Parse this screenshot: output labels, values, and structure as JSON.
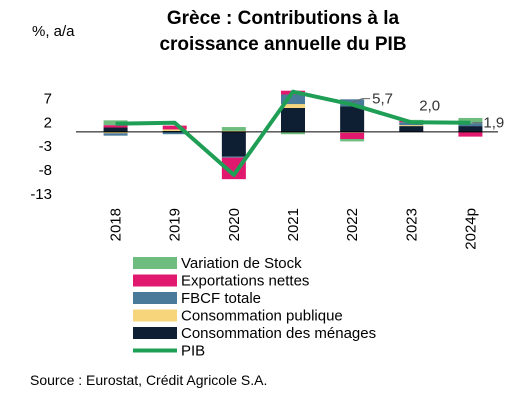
{
  "chart_data": {
    "type": "bar",
    "title_lines": [
      "Grèce : Contributions à la",
      "croissance annuelle du PIB"
    ],
    "unit_label": "%, a/a",
    "categories": [
      "2018",
      "2019",
      "2020",
      "2021",
      "2022",
      "2023",
      "2024p"
    ],
    "ylim": [
      -13,
      10
    ],
    "yticks": [
      "7",
      "2",
      "-3",
      "-8",
      "-13"
    ],
    "ytick_values": [
      7,
      2,
      -3,
      -8,
      -13
    ],
    "stacked": true,
    "grid": false,
    "series": [
      {
        "name": "Consommation des ménages",
        "kind": "bar",
        "color": "#0f1f33",
        "values": [
          0.9,
          0.2,
          -5.2,
          5.0,
          5.3,
          1.2,
          1.2
        ]
      },
      {
        "name": "Consommation publique",
        "kind": "bar",
        "color": "#f7d57a",
        "values": [
          -0.3,
          0.3,
          0.2,
          0.8,
          -0.2,
          0.2,
          0.0
        ]
      },
      {
        "name": "FBCF totale",
        "kind": "bar",
        "color": "#4a7a9a",
        "values": [
          -0.5,
          -0.5,
          -0.2,
          2.0,
          1.5,
          0.6,
          0.6
        ]
      },
      {
        "name": "Exportations nettes",
        "kind": "bar",
        "color": "#e0196e",
        "values": [
          0.5,
          0.8,
          -4.5,
          0.8,
          -1.3,
          0.3,
          -1.0
        ]
      },
      {
        "name": "Variation de Stock",
        "kind": "bar",
        "color": "#6fbd7e",
        "values": [
          1.0,
          0.0,
          0.8,
          -0.5,
          -0.5,
          0.2,
          1.1
        ]
      },
      {
        "name": "PIB",
        "kind": "line",
        "color": "#1f9e56",
        "values": [
          1.7,
          1.9,
          -9.0,
          8.4,
          5.7,
          2.0,
          1.9
        ]
      }
    ],
    "data_labels": [
      {
        "category": "2022",
        "text": "5,7"
      },
      {
        "category": "2023",
        "text": "2,0"
      },
      {
        "category": "2024p",
        "text": "1,9"
      }
    ],
    "legend_order": [
      "Variation de Stock",
      "Exportations nettes",
      "FBCF totale",
      "Consommation publique",
      "Consommation des ménages",
      "PIB"
    ],
    "legend_position": "bottom",
    "source": "Source : Eurostat, Crédit Agricole S.A."
  }
}
